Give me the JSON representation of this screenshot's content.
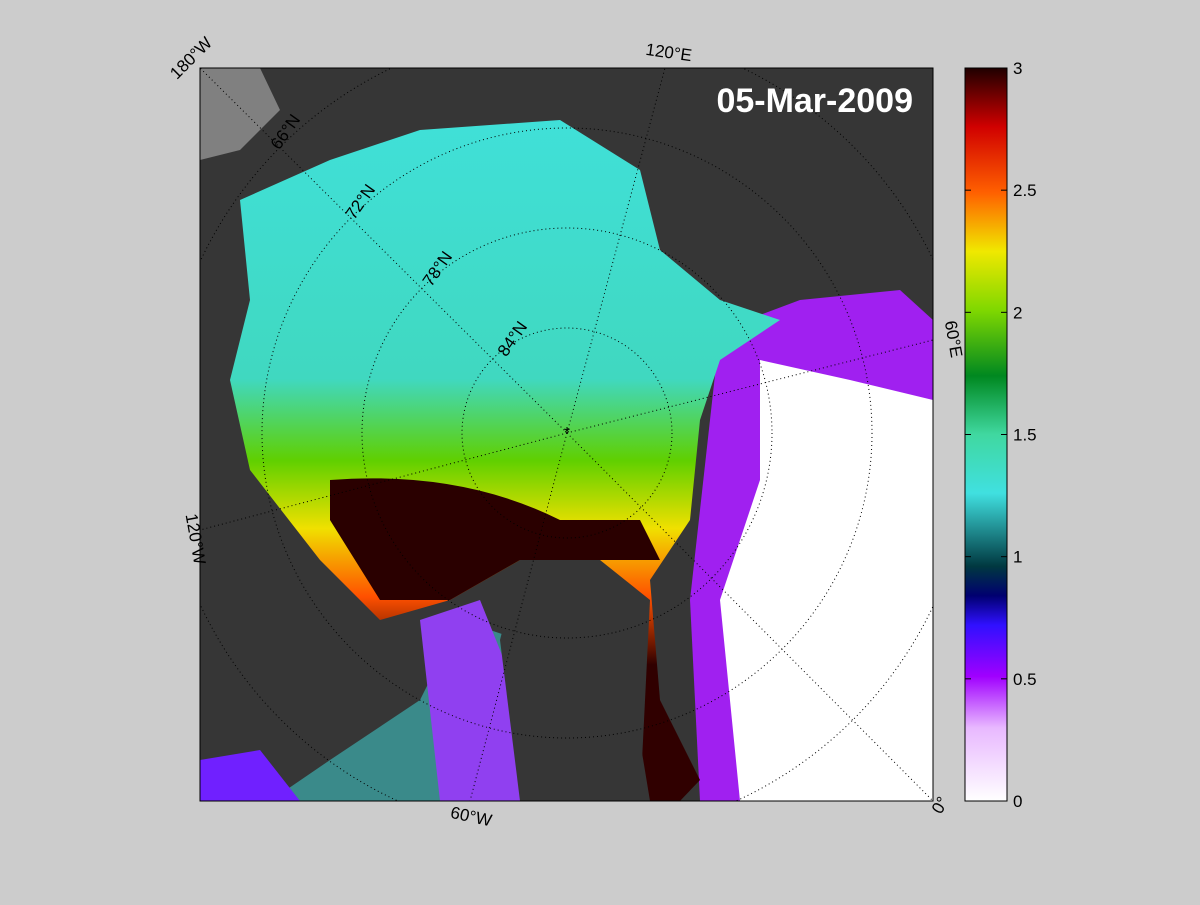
{
  "map": {
    "title": "05-Mar-2009",
    "lon_labels": [
      "180°W",
      "120°E",
      "60°E",
      "0°",
      "60°W",
      "120°W"
    ],
    "lat_labels": [
      "66°N",
      "72°N",
      "78°N",
      "84°N"
    ]
  },
  "colorbar": {
    "lim": [
      0,
      3
    ],
    "ticks": [
      0,
      0.5,
      1,
      1.5,
      2,
      2.5,
      3
    ]
  }
}
